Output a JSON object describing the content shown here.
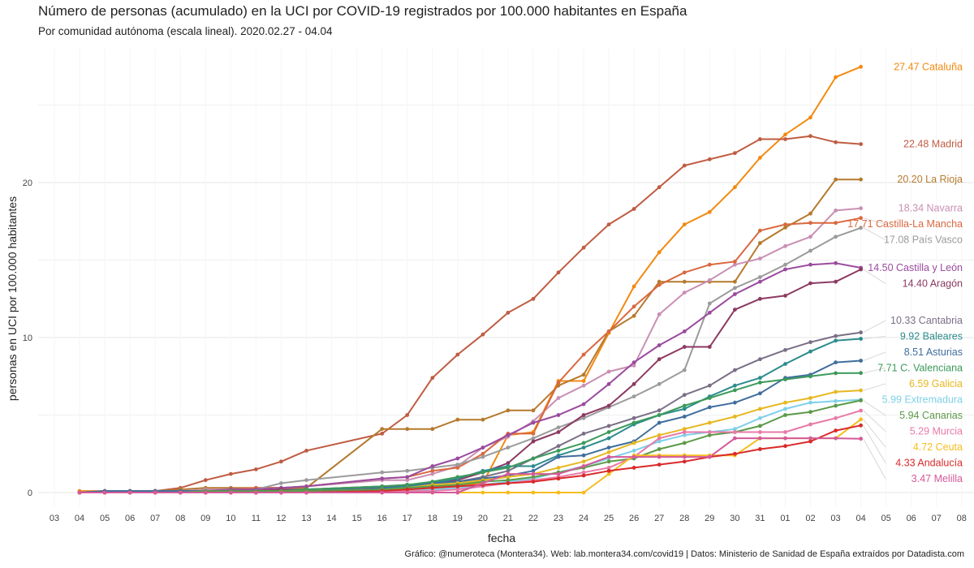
{
  "title": "Número de personas (acumulado) en la UCI por COVID-19 registrados por 100.000 habitantes en España",
  "subtitle": "Por comunidad autónoma (escala lineal). 2020.02.27 - 04.04",
  "caption": "Gráfico: @numeroteca (Montera34). Web: lab.montera34.com/covid19 | Datos: Ministerio de Sanidad de España extraídos por Datadista.com",
  "chart_data": {
    "type": "line",
    "xlabel": "fecha",
    "ylabel": "personas en UCI por 100.000 habitantes",
    "ylim": [
      0,
      27.5
    ],
    "xlim": [
      "03-03",
      "04-08"
    ],
    "y_ticks": [
      0,
      10,
      20
    ],
    "x_tick_labels": [
      "03",
      "04",
      "05",
      "06",
      "07",
      "08",
      "09",
      "10",
      "11",
      "12",
      "13",
      "14",
      "15",
      "16",
      "17",
      "18",
      "19",
      "20",
      "21",
      "22",
      "23",
      "24",
      "25",
      "26",
      "27",
      "28",
      "29",
      "30",
      "31",
      "01",
      "02",
      "03",
      "04",
      "05",
      "06",
      "07",
      "08"
    ],
    "grid": true,
    "legend": "direct labels at line ends",
    "x": [
      "03-04",
      "03-05",
      "03-06",
      "03-07",
      "03-08",
      "03-09",
      "03-10",
      "03-11",
      "03-12",
      "03-13",
      "03-14",
      "03-15",
      "03-16",
      "03-17",
      "03-18",
      "03-19",
      "03-20",
      "03-21",
      "03-22",
      "03-23",
      "03-24",
      "03-25",
      "03-26",
      "03-27",
      "03-28",
      "03-29",
      "03-30",
      "03-31",
      "04-01",
      "04-02",
      "04-03",
      "04-04"
    ],
    "series": [
      {
        "name": "Cataluña",
        "end_label": "27.47 Cataluña",
        "color": "#f28a12",
        "values": [
          0.1,
          0.1,
          0.1,
          0.1,
          0.1,
          0.1,
          0.1,
          0.1,
          0.1,
          0.1,
          null,
          null,
          0.1,
          0.2,
          0.3,
          0.4,
          0.6,
          3.7,
          3.9,
          7.2,
          7.2,
          10.3,
          13.3,
          15.5,
          17.3,
          18.1,
          19.7,
          21.6,
          23.1,
          24.2,
          26.8,
          27.47
        ]
      },
      {
        "name": "Madrid",
        "end_label": "22.48 Madrid",
        "color": "#bf5c42",
        "values": [
          0.0,
          0.1,
          0.1,
          0.1,
          0.3,
          0.8,
          1.2,
          1.5,
          2.0,
          2.7,
          null,
          null,
          3.8,
          5.0,
          7.4,
          8.9,
          10.2,
          11.6,
          12.5,
          14.2,
          15.8,
          17.3,
          18.3,
          19.7,
          21.1,
          21.5,
          21.9,
          22.8,
          22.8,
          23.0,
          22.6,
          22.48
        ]
      },
      {
        "name": "La Rioja",
        "end_label": "20.20 La Rioja",
        "color": "#b57a2e",
        "values": [
          0.0,
          0.0,
          0.0,
          0.1,
          0.2,
          0.3,
          0.3,
          0.3,
          0.3,
          0.3,
          null,
          null,
          4.1,
          4.1,
          4.1,
          4.7,
          4.7,
          5.3,
          5.3,
          6.9,
          7.6,
          10.4,
          11.4,
          13.6,
          13.6,
          13.6,
          13.6,
          16.1,
          17.1,
          18.0,
          20.2,
          20.2
        ]
      },
      {
        "name": "Navarra",
        "end_label": "18.34 Navarra",
        "color": "#c98fb4",
        "values": [
          0.0,
          0.0,
          0.0,
          0.0,
          0.1,
          0.2,
          0.2,
          0.3,
          0.3,
          0.4,
          null,
          null,
          0.8,
          0.8,
          1.2,
          1.7,
          2.9,
          3.6,
          4.6,
          6.1,
          6.9,
          7.8,
          8.2,
          11.5,
          12.9,
          13.7,
          14.7,
          15.1,
          15.9,
          16.5,
          18.2,
          18.34
        ]
      },
      {
        "name": "Castilla-La Mancha",
        "end_label": "17.71 Castilla-La Mancha",
        "color": "#d9683f",
        "values": [
          0.0,
          0.0,
          0.0,
          0.1,
          0.1,
          0.1,
          0.2,
          0.3,
          0.3,
          0.4,
          null,
          null,
          0.9,
          1.0,
          1.4,
          1.6,
          2.5,
          3.8,
          3.8,
          7.1,
          8.9,
          10.4,
          12.0,
          13.4,
          14.2,
          14.7,
          14.9,
          16.9,
          17.3,
          17.4,
          17.4,
          17.71
        ]
      },
      {
        "name": "País Vasco",
        "end_label": "17.08 País Vasco",
        "color": "#9b9b9b",
        "values": [
          0.0,
          0.1,
          0.1,
          0.1,
          0.1,
          0.1,
          0.2,
          0.2,
          0.6,
          0.8,
          null,
          null,
          1.3,
          1.4,
          1.6,
          1.8,
          2.3,
          2.9,
          3.5,
          4.2,
          4.8,
          5.5,
          6.2,
          7.0,
          7.9,
          12.2,
          13.2,
          13.9,
          14.7,
          15.6,
          16.5,
          17.08
        ]
      },
      {
        "name": "Castilla y León",
        "end_label": "14.50 Castilla y León",
        "color": "#9a4b9e",
        "values": [
          0.0,
          0.0,
          0.0,
          0.0,
          0.0,
          0.1,
          0.2,
          0.2,
          0.3,
          0.4,
          null,
          null,
          0.9,
          1.0,
          1.7,
          2.2,
          2.9,
          3.7,
          4.5,
          5.0,
          5.7,
          7.0,
          8.4,
          9.5,
          10.4,
          11.6,
          12.8,
          13.6,
          14.4,
          14.7,
          14.8,
          14.5
        ]
      },
      {
        "name": "Aragón",
        "end_label": "14.40 Aragón",
        "color": "#8c3a62",
        "values": [
          0.0,
          0.0,
          0.0,
          0.0,
          0.0,
          0.0,
          0.1,
          0.1,
          0.2,
          0.2,
          null,
          null,
          0.4,
          0.5,
          0.6,
          0.8,
          1.3,
          1.9,
          3.3,
          3.9,
          5.0,
          5.6,
          7.0,
          8.6,
          9.4,
          9.4,
          11.8,
          12.5,
          12.7,
          13.5,
          13.6,
          14.4
        ]
      },
      {
        "name": "Cantabria",
        "end_label": "10.33 Cantabria",
        "color": "#7a6f86",
        "values": [
          0.0,
          0.0,
          0.0,
          0.0,
          0.0,
          0.0,
          0.0,
          0.0,
          0.1,
          0.2,
          null,
          null,
          0.3,
          0.4,
          0.6,
          0.7,
          1.0,
          1.4,
          2.2,
          3.0,
          3.8,
          4.3,
          4.8,
          5.3,
          6.3,
          6.9,
          7.9,
          8.6,
          9.2,
          9.7,
          10.1,
          10.33
        ]
      },
      {
        "name": "Baleares",
        "end_label": "9.92 Baleares",
        "color": "#2c8c8c",
        "values": [
          0.0,
          0.0,
          0.0,
          0.0,
          0.0,
          0.0,
          0.0,
          0.1,
          0.1,
          0.2,
          null,
          null,
          0.3,
          0.4,
          0.6,
          0.9,
          1.4,
          1.7,
          1.7,
          2.4,
          2.9,
          3.5,
          4.4,
          5.0,
          5.4,
          6.2,
          6.9,
          7.4,
          8.3,
          9.1,
          9.8,
          9.92
        ]
      },
      {
        "name": "Asturias",
        "end_label": "8.51 Asturias",
        "color": "#3f6e9e",
        "values": [
          0.0,
          0.1,
          0.1,
          0.1,
          0.1,
          0.1,
          0.1,
          0.1,
          0.1,
          0.1,
          null,
          null,
          0.3,
          0.5,
          0.6,
          0.7,
          0.9,
          1.1,
          1.4,
          2.3,
          2.4,
          2.9,
          3.3,
          4.5,
          4.9,
          5.5,
          5.8,
          6.4,
          7.4,
          7.6,
          8.4,
          8.51
        ]
      },
      {
        "name": "C. Valenciana",
        "end_label": "7.71 C. Valenciana",
        "color": "#3b9a5a",
        "values": [
          0.0,
          0.0,
          0.0,
          0.0,
          0.0,
          0.0,
          0.0,
          0.1,
          0.1,
          0.2,
          null,
          null,
          0.4,
          0.5,
          0.7,
          1.0,
          1.3,
          1.6,
          2.2,
          2.7,
          3.2,
          3.9,
          4.5,
          5.0,
          5.6,
          6.1,
          6.6,
          7.1,
          7.3,
          7.5,
          7.7,
          7.71
        ]
      },
      {
        "name": "Galicia",
        "end_label": "6.59 Galicia",
        "color": "#e6b820",
        "values": [
          0.0,
          0.0,
          0.0,
          0.0,
          0.0,
          0.0,
          0.0,
          0.0,
          0.1,
          0.1,
          null,
          null,
          0.2,
          0.3,
          0.5,
          0.6,
          0.8,
          1.0,
          1.2,
          1.6,
          2.0,
          2.6,
          3.2,
          3.7,
          4.1,
          4.5,
          4.9,
          5.4,
          5.8,
          6.1,
          6.5,
          6.59
        ]
      },
      {
        "name": "Extremadura",
        "end_label": "5.99 Extremadura",
        "color": "#7fd0e8",
        "values": [
          0.0,
          0.0,
          0.0,
          0.0,
          0.0,
          0.0,
          0.0,
          0.0,
          0.0,
          0.0,
          null,
          null,
          0.1,
          0.1,
          0.2,
          0.3,
          0.5,
          0.7,
          0.9,
          1.3,
          1.7,
          2.2,
          2.7,
          3.3,
          3.7,
          3.9,
          4.1,
          4.8,
          5.4,
          5.8,
          5.9,
          5.99
        ]
      },
      {
        "name": "Canarias",
        "end_label": "5.94 Canarias",
        "color": "#5c9a48",
        "values": [
          0.0,
          0.0,
          0.0,
          0.0,
          0.0,
          0.1,
          0.1,
          0.1,
          0.1,
          0.1,
          null,
          null,
          0.2,
          0.3,
          0.4,
          0.5,
          0.7,
          0.8,
          1.0,
          1.3,
          1.6,
          2.0,
          2.2,
          2.8,
          3.2,
          3.7,
          3.9,
          4.3,
          5.0,
          5.2,
          5.6,
          5.94
        ]
      },
      {
        "name": "Murcia",
        "end_label": "5.29 Murcia",
        "color": "#e87aa8",
        "values": [
          0.0,
          0.0,
          0.0,
          0.0,
          0.0,
          0.0,
          0.0,
          0.0,
          0.0,
          0.0,
          null,
          null,
          0.0,
          0.1,
          0.1,
          0.2,
          0.4,
          0.6,
          0.8,
          1.0,
          1.3,
          1.6,
          2.3,
          3.5,
          3.9,
          3.9,
          3.9,
          3.9,
          3.9,
          4.4,
          4.8,
          5.29
        ]
      },
      {
        "name": "Ceuta",
        "end_label": "4.72 Ceuta",
        "color": "#f5be20",
        "values": [
          0.0,
          0.0,
          0.0,
          0.0,
          0.0,
          0.0,
          0.0,
          0.0,
          0.0,
          0.0,
          null,
          null,
          0.0,
          0.0,
          0.0,
          0.0,
          0.0,
          0.0,
          0.0,
          0.0,
          0.0,
          1.2,
          2.4,
          2.4,
          2.4,
          2.4,
          2.4,
          3.5,
          3.5,
          3.5,
          3.5,
          4.72
        ]
      },
      {
        "name": "Andalucía",
        "end_label": "4.33 Andalucía",
        "color": "#d92a2a",
        "values": [
          0.0,
          0.0,
          0.0,
          0.0,
          0.0,
          0.0,
          0.0,
          0.0,
          0.0,
          0.0,
          null,
          null,
          0.1,
          0.2,
          0.3,
          0.4,
          0.5,
          0.6,
          0.7,
          0.9,
          1.1,
          1.4,
          1.6,
          1.8,
          2.0,
          2.3,
          2.5,
          2.8,
          3.0,
          3.3,
          4.0,
          4.33
        ]
      },
      {
        "name": "Melilla",
        "end_label": "3.47 Melilla",
        "color": "#d45a9a",
        "values": [
          0.0,
          0.0,
          0.0,
          0.0,
          0.0,
          0.0,
          0.0,
          0.0,
          0.0,
          0.0,
          null,
          null,
          0.0,
          0.0,
          0.0,
          0.0,
          0.6,
          1.2,
          1.2,
          1.2,
          1.7,
          2.3,
          2.3,
          2.3,
          2.3,
          2.3,
          3.5,
          3.5,
          3.5,
          3.5,
          3.5,
          3.47
        ]
      }
    ]
  }
}
